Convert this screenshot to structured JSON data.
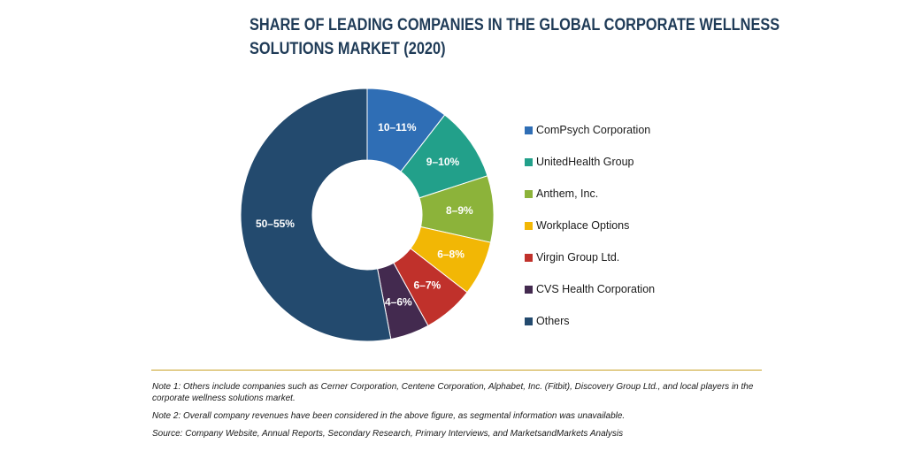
{
  "title": {
    "line1": "SHARE OF LEADING COMPANIES IN THE GLOBAL CORPORATE WELLNESS",
    "line2": "SOLUTIONS MARKET (2020)"
  },
  "chart_data": {
    "type": "pie",
    "variant": "donut",
    "title": "SHARE OF LEADING COMPANIES IN THE GLOBAL CORPORATE WELLNESS SOLUTIONS MARKET (2020)",
    "unit": "%",
    "legend_position": "right",
    "slices": [
      {
        "name": "ComPsych Corporation",
        "label": "10–11%",
        "value": 10.5,
        "color": "#2f6eb5"
      },
      {
        "name": "UnitedHealth Group",
        "label": "9–10%",
        "value": 9.5,
        "color": "#22a08a"
      },
      {
        "name": "Anthem, Inc.",
        "label": "8–9%",
        "value": 8.5,
        "color": "#8cb33a"
      },
      {
        "name": "Workplace Options",
        "label": "6–8%",
        "value": 7,
        "color": "#f2b705"
      },
      {
        "name": "Virgin Group Ltd.",
        "label": "6–7%",
        "value": 6.5,
        "color": "#c0312b"
      },
      {
        "name": "CVS Health Corporation",
        "label": "4–6%",
        "value": 5,
        "color": "#432a4f"
      },
      {
        "name": "Others",
        "label": "50–55%",
        "value": 53,
        "color": "#234a6e"
      }
    ]
  },
  "notes": [
    "Note 1: Others include companies such as Cerner Corporation, Centene Corporation, Alphabet, Inc. (Fitbit), Discovery Group Ltd., and local players in the corporate wellness solutions market.",
    "Note 2: Overall company revenues have been considered in the above figure, as segmental information was unavailable.",
    "Source: Company Website, Annual Reports, Secondary Research, Primary Interviews, and MarketsandMarkets Analysis"
  ]
}
